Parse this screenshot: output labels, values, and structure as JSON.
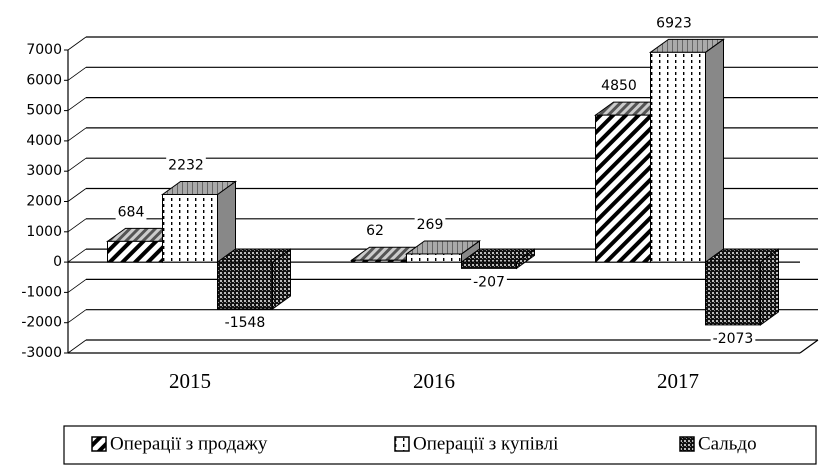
{
  "chart_data": {
    "type": "bar3d",
    "categories": [
      "2015",
      "2016",
      "2017"
    ],
    "series": [
      {
        "name": "Операції з продажу",
        "color": "#000000",
        "values": [
          684,
          62,
          4850
        ]
      },
      {
        "name": "Операції з купівлі",
        "color": "#000000",
        "values": [
          2232,
          269,
          6923
        ]
      },
      {
        "name": "Сальдо",
        "color": "#000000",
        "values": [
          -1548,
          -207,
          -2073
        ]
      }
    ],
    "ylim": [
      -3000,
      7000
    ],
    "yticks": [
      -3000,
      -2000,
      -1000,
      0,
      1000,
      2000,
      3000,
      4000,
      5000,
      6000,
      7000
    ],
    "grid": true
  }
}
